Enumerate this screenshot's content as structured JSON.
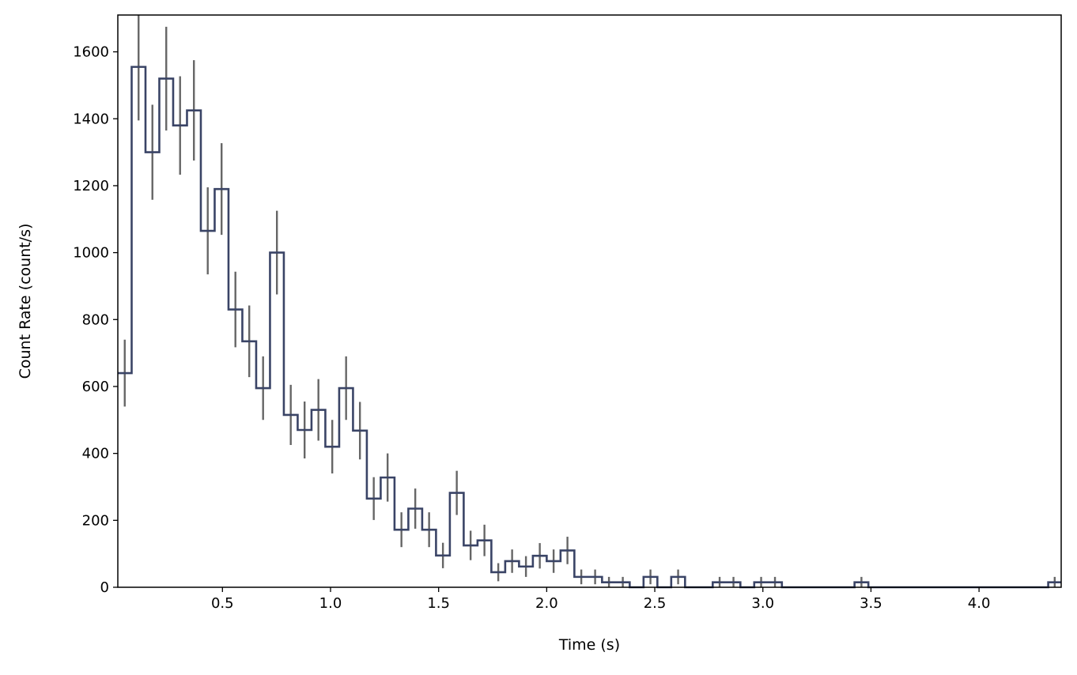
{
  "chart_data": {
    "type": "step",
    "title": "",
    "xlabel": "Time (s)",
    "ylabel": "Count Rate (count/s)",
    "xlim": [
      0.016,
      4.38
    ],
    "ylim": [
      0,
      1710
    ],
    "x_ticks": [
      0.5,
      1.0,
      1.5,
      2.0,
      2.5,
      3.0,
      3.5,
      4.0
    ],
    "x_tick_labels": [
      "0.5",
      "1.0",
      "1.5",
      "2.0",
      "2.5",
      "3.0",
      "3.5",
      "4.0"
    ],
    "y_ticks": [
      0,
      200,
      400,
      600,
      800,
      1000,
      1200,
      1400,
      1600
    ],
    "y_tick_labels": [
      "0",
      "200",
      "400",
      "600",
      "800",
      "1000",
      "1200",
      "1400",
      "1600"
    ],
    "grid": false,
    "step_color": "#3a4466",
    "errorbar_color": "#666666",
    "bins": [
      {
        "x0": 0.016,
        "x1": 0.08,
        "y": 640,
        "err": 100
      },
      {
        "x0": 0.08,
        "x1": 0.144,
        "y": 1555,
        "err": 160
      },
      {
        "x0": 0.144,
        "x1": 0.208,
        "y": 1300,
        "err": 142
      },
      {
        "x0": 0.208,
        "x1": 0.272,
        "y": 1520,
        "err": 155
      },
      {
        "x0": 0.272,
        "x1": 0.336,
        "y": 1380,
        "err": 147
      },
      {
        "x0": 0.336,
        "x1": 0.4,
        "y": 1425,
        "err": 150
      },
      {
        "x0": 0.4,
        "x1": 0.464,
        "y": 1065,
        "err": 130
      },
      {
        "x0": 0.464,
        "x1": 0.528,
        "y": 1190,
        "err": 137
      },
      {
        "x0": 0.528,
        "x1": 0.592,
        "y": 830,
        "err": 113
      },
      {
        "x0": 0.592,
        "x1": 0.656,
        "y": 735,
        "err": 107
      },
      {
        "x0": 0.656,
        "x1": 0.72,
        "y": 595,
        "err": 95
      },
      {
        "x0": 0.72,
        "x1": 0.784,
        "y": 1000,
        "err": 125
      },
      {
        "x0": 0.784,
        "x1": 0.848,
        "y": 515,
        "err": 90
      },
      {
        "x0": 0.848,
        "x1": 0.912,
        "y": 470,
        "err": 85
      },
      {
        "x0": 0.912,
        "x1": 0.976,
        "y": 530,
        "err": 92
      },
      {
        "x0": 0.976,
        "x1": 1.04,
        "y": 420,
        "err": 80
      },
      {
        "x0": 1.04,
        "x1": 1.104,
        "y": 595,
        "err": 95
      },
      {
        "x0": 1.104,
        "x1": 1.168,
        "y": 468,
        "err": 86
      },
      {
        "x0": 1.168,
        "x1": 1.232,
        "y": 265,
        "err": 64
      },
      {
        "x0": 1.232,
        "x1": 1.296,
        "y": 328,
        "err": 72
      },
      {
        "x0": 1.296,
        "x1": 1.36,
        "y": 172,
        "err": 52
      },
      {
        "x0": 1.36,
        "x1": 1.424,
        "y": 235,
        "err": 60
      },
      {
        "x0": 1.424,
        "x1": 1.488,
        "y": 172,
        "err": 52
      },
      {
        "x0": 1.488,
        "x1": 1.552,
        "y": 95,
        "err": 38
      },
      {
        "x0": 1.552,
        "x1": 1.616,
        "y": 282,
        "err": 66
      },
      {
        "x0": 1.616,
        "x1": 1.68,
        "y": 125,
        "err": 44
      },
      {
        "x0": 1.68,
        "x1": 1.744,
        "y": 140,
        "err": 47
      },
      {
        "x0": 1.744,
        "x1": 1.808,
        "y": 45,
        "err": 27
      },
      {
        "x0": 1.808,
        "x1": 1.872,
        "y": 78,
        "err": 35
      },
      {
        "x0": 1.872,
        "x1": 1.936,
        "y": 62,
        "err": 31
      },
      {
        "x0": 1.936,
        "x1": 2.0,
        "y": 94,
        "err": 38
      },
      {
        "x0": 2.0,
        "x1": 2.064,
        "y": 78,
        "err": 35
      },
      {
        "x0": 2.064,
        "x1": 2.128,
        "y": 110,
        "err": 41
      },
      {
        "x0": 2.128,
        "x1": 2.192,
        "y": 31,
        "err": 22
      },
      {
        "x0": 2.192,
        "x1": 2.256,
        "y": 31,
        "err": 22
      },
      {
        "x0": 2.256,
        "x1": 2.32,
        "y": 15,
        "err": 16
      },
      {
        "x0": 2.32,
        "x1": 2.384,
        "y": 15,
        "err": 16
      },
      {
        "x0": 2.384,
        "x1": 2.448,
        "y": 0,
        "err": 0
      },
      {
        "x0": 2.448,
        "x1": 2.512,
        "y": 31,
        "err": 22
      },
      {
        "x0": 2.512,
        "x1": 2.576,
        "y": 0,
        "err": 0
      },
      {
        "x0": 2.576,
        "x1": 2.64,
        "y": 31,
        "err": 22
      },
      {
        "x0": 2.64,
        "x1": 2.704,
        "y": 0,
        "err": 0
      },
      {
        "x0": 2.704,
        "x1": 2.768,
        "y": 0,
        "err": 0
      },
      {
        "x0": 2.768,
        "x1": 2.832,
        "y": 15,
        "err": 16
      },
      {
        "x0": 2.832,
        "x1": 2.896,
        "y": 15,
        "err": 16
      },
      {
        "x0": 2.896,
        "x1": 2.96,
        "y": 0,
        "err": 0
      },
      {
        "x0": 2.96,
        "x1": 3.024,
        "y": 15,
        "err": 16
      },
      {
        "x0": 3.024,
        "x1": 3.088,
        "y": 15,
        "err": 16
      },
      {
        "x0": 3.088,
        "x1": 3.424,
        "y": 0,
        "err": 0
      },
      {
        "x0": 3.424,
        "x1": 3.488,
        "y": 15,
        "err": 16
      },
      {
        "x0": 3.488,
        "x1": 4.32,
        "y": 0,
        "err": 0
      },
      {
        "x0": 4.32,
        "x1": 4.38,
        "y": 15,
        "err": 16
      }
    ]
  }
}
